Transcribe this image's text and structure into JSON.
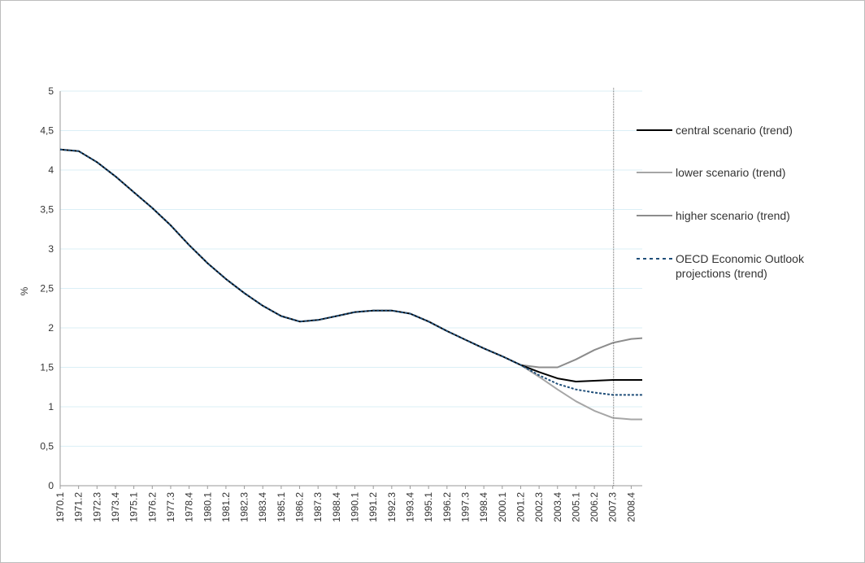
{
  "chart_data": {
    "type": "line",
    "title": "",
    "xlabel": "",
    "ylabel": "%",
    "ylim": [
      0,
      5
    ],
    "yticks": [
      "0",
      "0,5",
      "1",
      "1,5",
      "2",
      "2,5",
      "3",
      "3,5",
      "4",
      "4,5",
      "5"
    ],
    "x_tick_labels": [
      "1970.1",
      "1971.2",
      "1972.3",
      "1973.4",
      "1975.1",
      "1976.2",
      "1977.3",
      "1978.4",
      "1980.1",
      "1981.2",
      "1982.3",
      "1983.4",
      "1985.1",
      "1986.2",
      "1987.3",
      "1988.4",
      "1990.1",
      "1991.2",
      "1992.3",
      "1993.4",
      "1995.1",
      "1996.2",
      "1997.3",
      "1998.4",
      "2000.1",
      "2001.2",
      "2002.3",
      "2003.4",
      "2005.1",
      "2006.2",
      "2007.3",
      "2008.4"
    ],
    "grid": "horizontal",
    "projection_start": "2007.3",
    "legend_position": "right",
    "series": [
      {
        "name": "central scenario (trend)",
        "color": "#000000",
        "style": "solid",
        "points": [
          [
            "1970.1",
            4.26
          ],
          [
            "1971.2",
            4.24
          ],
          [
            "1972.3",
            4.1
          ],
          [
            "1973.4",
            3.92
          ],
          [
            "1975.1",
            3.72
          ],
          [
            "1976.2",
            3.52
          ],
          [
            "1977.3",
            3.3
          ],
          [
            "1978.4",
            3.05
          ],
          [
            "1980.1",
            2.82
          ],
          [
            "1981.2",
            2.62
          ],
          [
            "1982.3",
            2.44
          ],
          [
            "1983.4",
            2.28
          ],
          [
            "1985.1",
            2.15
          ],
          [
            "1986.2",
            2.08
          ],
          [
            "1987.3",
            2.1
          ],
          [
            "1988.4",
            2.15
          ],
          [
            "1990.1",
            2.2
          ],
          [
            "1991.2",
            2.22
          ],
          [
            "1992.3",
            2.22
          ],
          [
            "1993.4",
            2.18
          ],
          [
            "1995.1",
            2.08
          ],
          [
            "1996.2",
            1.96
          ],
          [
            "1997.3",
            1.85
          ],
          [
            "1998.4",
            1.74
          ],
          [
            "2000.1",
            1.64
          ],
          [
            "2001.2",
            1.53
          ],
          [
            "2002.3",
            1.44
          ],
          [
            "2003.4",
            1.36
          ],
          [
            "2005.1",
            1.32
          ],
          [
            "2006.2",
            1.33
          ],
          [
            "2007.3",
            1.34
          ],
          [
            "2008.4",
            1.34
          ],
          [
            "2009.3",
            1.34
          ]
        ]
      },
      {
        "name": "lower scenario (trend)",
        "color": "#a6a6a6",
        "style": "solid",
        "points": [
          [
            "2001.2",
            1.53
          ],
          [
            "2002.3",
            1.38
          ],
          [
            "2003.4",
            1.22
          ],
          [
            "2005.1",
            1.07
          ],
          [
            "2006.2",
            0.95
          ],
          [
            "2007.3",
            0.86
          ],
          [
            "2008.4",
            0.84
          ],
          [
            "2009.3",
            0.84
          ]
        ]
      },
      {
        "name": "higher scenario (trend)",
        "color": "#8c8c8c",
        "style": "solid",
        "points": [
          [
            "2001.2",
            1.53
          ],
          [
            "2002.3",
            1.5
          ],
          [
            "2003.4",
            1.5
          ],
          [
            "2005.1",
            1.6
          ],
          [
            "2006.2",
            1.72
          ],
          [
            "2007.3",
            1.81
          ],
          [
            "2008.4",
            1.86
          ],
          [
            "2009.3",
            1.87
          ]
        ]
      },
      {
        "name": "OECD Economic Outlook projections (trend)",
        "color": "#1f4e79",
        "style": "dashed",
        "points": [
          [
            "1970.1",
            4.26
          ],
          [
            "1971.2",
            4.24
          ],
          [
            "1972.3",
            4.1
          ],
          [
            "1973.4",
            3.92
          ],
          [
            "1975.1",
            3.72
          ],
          [
            "1976.2",
            3.52
          ],
          [
            "1977.3",
            3.3
          ],
          [
            "1978.4",
            3.05
          ],
          [
            "1980.1",
            2.82
          ],
          [
            "1981.2",
            2.62
          ],
          [
            "1982.3",
            2.44
          ],
          [
            "1983.4",
            2.28
          ],
          [
            "1985.1",
            2.15
          ],
          [
            "1986.2",
            2.08
          ],
          [
            "1987.3",
            2.1
          ],
          [
            "1988.4",
            2.15
          ],
          [
            "1990.1",
            2.2
          ],
          [
            "1991.2",
            2.22
          ],
          [
            "1992.3",
            2.22
          ],
          [
            "1993.4",
            2.18
          ],
          [
            "1995.1",
            2.08
          ],
          [
            "1996.2",
            1.96
          ],
          [
            "1997.3",
            1.85
          ],
          [
            "1998.4",
            1.74
          ],
          [
            "2000.1",
            1.64
          ],
          [
            "2001.2",
            1.53
          ],
          [
            "2002.3",
            1.4
          ],
          [
            "2003.4",
            1.29
          ],
          [
            "2005.1",
            1.22
          ],
          [
            "2006.2",
            1.18
          ],
          [
            "2007.3",
            1.15
          ],
          [
            "2008.4",
            1.15
          ],
          [
            "2009.3",
            1.15
          ]
        ]
      }
    ]
  }
}
